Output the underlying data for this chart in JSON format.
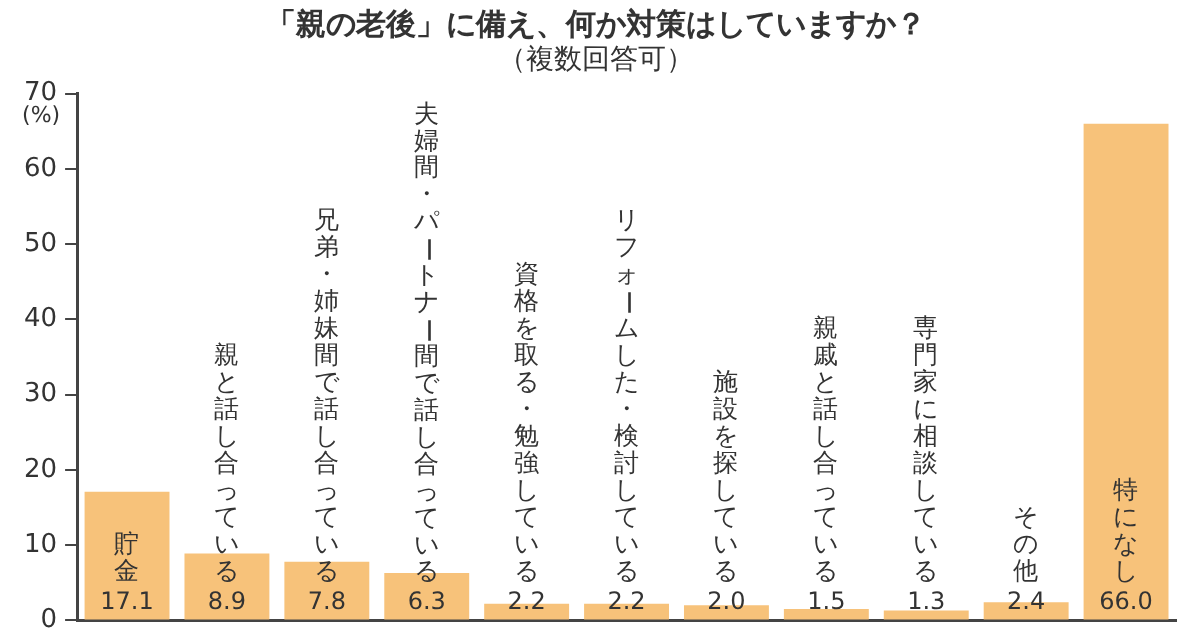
{
  "chart_data": {
    "type": "bar",
    "title": "「親の老後」に備え、何か対策はしていますか？",
    "subtitle": "（複数回答可）",
    "ylabel": "(%)",
    "categories": [
      "貯金",
      "親と話し合っている",
      "兄弟・姉妹間で話し合っている",
      "夫婦間・パートナー間で話し合っている",
      "資格を取る・勉強している",
      "リフォームした・検討している",
      "施設を探している",
      "親戚と話し合っている",
      "専門家に相談している",
      "その他",
      "特になし"
    ],
    "values": [
      17.1,
      8.9,
      7.8,
      6.3,
      2.2,
      2.2,
      2.0,
      1.5,
      1.3,
      2.4,
      66.0
    ],
    "value_labels": [
      "17.1",
      "8.9",
      "7.8",
      "6.3",
      "2.2",
      "2.2",
      "2.0",
      "1.5",
      "1.3",
      "2.4",
      "66.0"
    ],
    "color": "#f7c27a",
    "ylim": [
      0,
      70
    ],
    "yticks": [
      0,
      10,
      20,
      30,
      40,
      50,
      60,
      70
    ],
    "grid": false,
    "legend": false
  }
}
